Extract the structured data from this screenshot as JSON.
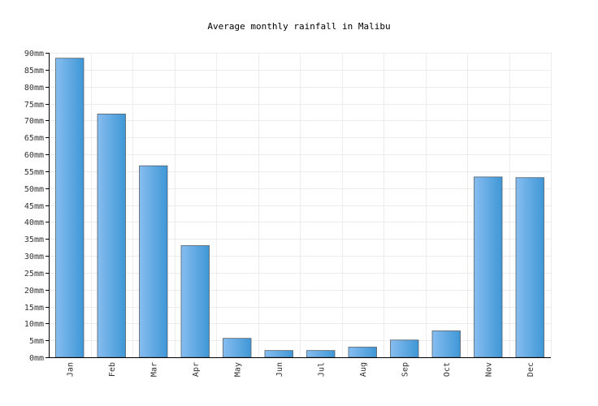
{
  "chart_data": {
    "type": "bar",
    "title": "Average monthly rainfall in Malibu",
    "xlabel": "",
    "ylabel": "",
    "unit": "mm",
    "categories": [
      "Jan",
      "Feb",
      "Mar",
      "Apr",
      "May",
      "Jun",
      "Jul",
      "Aug",
      "Sep",
      "Oct",
      "Nov",
      "Dec"
    ],
    "values": [
      88.4,
      71.9,
      56.6,
      33.0,
      5.6,
      2.0,
      2.0,
      3.0,
      5.1,
      7.8,
      53.3,
      53.1
    ],
    "ylim": [
      0,
      90
    ],
    "yticks": [
      "0mm",
      "5mm",
      "10mm",
      "15mm",
      "20mm",
      "25mm",
      "30mm",
      "35mm",
      "40mm",
      "45mm",
      "50mm",
      "55mm",
      "60mm",
      "65mm",
      "70mm",
      "75mm",
      "80mm",
      "85mm",
      "90mm"
    ],
    "grid": true,
    "legend": "none",
    "colors": {
      "bar_light": "#86bdf0",
      "bar_dark": "#3f97d6",
      "bar_stroke": "#555f69",
      "grid": "#ececec",
      "axis": "#000000"
    }
  }
}
